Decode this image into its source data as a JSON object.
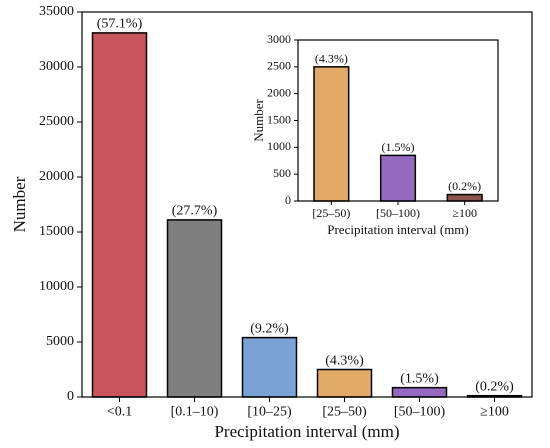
{
  "chart_data": [
    {
      "type": "bar",
      "xlabel": "Precipitation interval (mm)",
      "ylabel": "Number",
      "categories": [
        "<0.1",
        "[0.1–10)",
        "[10–25)",
        "[25–50)",
        "[50–100)",
        "≥100"
      ],
      "values": [
        33100,
        16100,
        5400,
        2500,
        850,
        120
      ],
      "annotations": [
        "(57.1%)",
        "(27.7%)",
        "(9.2%)",
        "(4.3%)",
        "(1.5%)",
        "(0.2%)"
      ],
      "colors": [
        "#c9545e",
        "#7f7f7f",
        "#7aa3d5",
        "#e2aa69",
        "#9569c0",
        "#8c564b"
      ],
      "ylim": [
        0,
        35000
      ],
      "yticks": [
        0,
        5000,
        10000,
        15000,
        20000,
        25000,
        30000,
        35000
      ]
    },
    {
      "type": "bar",
      "xlabel": "Precipitation interval (mm)",
      "ylabel": "Number",
      "categories": [
        "[25–50)",
        "[50–100)",
        "≥100"
      ],
      "values": [
        2500,
        850,
        120
      ],
      "annotations": [
        "(4.3%)",
        "(1.5%)",
        "(0.2%)"
      ],
      "colors": [
        "#e2aa69",
        "#9569c0",
        "#8c564b"
      ],
      "ylim": [
        0,
        3000
      ],
      "yticks": [
        0,
        500,
        1000,
        1500,
        2000,
        2500,
        3000
      ]
    }
  ]
}
